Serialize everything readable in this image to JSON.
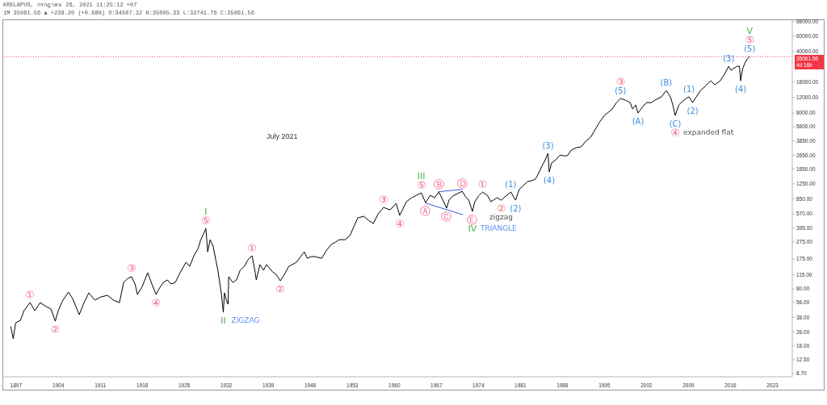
{
  "chart_data": {
    "type": "line",
    "title": "KRELAPUS, กรกฎาคม 26, 2021 11:25:12 +07",
    "subtitle": "1M 35061.56 ▲ +238.20 (+0.68%) O:34507.32 H:35095.33 L:33741.76 C:35061.56",
    "log": "y",
    "xlim": [
      1894.7,
      2026.3
    ],
    "xticks": [
      1897,
      1904,
      1911,
      1918,
      1925,
      1932,
      1939,
      1946,
      1953,
      1960,
      1967,
      1974,
      1981,
      1988,
      1995,
      2002,
      2009,
      2016,
      2023
    ],
    "ylim": [
      8,
      93000
    ],
    "yticks": [
      {
        "value": 8.7,
        "label": "8.70"
      },
      {
        "value": 12.5,
        "label": "12.50"
      },
      {
        "value": 18,
        "label": "18.00"
      },
      {
        "value": 26,
        "label": "26.00"
      },
      {
        "value": 38,
        "label": "38.00"
      },
      {
        "value": 56,
        "label": "56.00"
      },
      {
        "value": 80,
        "label": "80.00"
      },
      {
        "value": 115,
        "label": "115.00"
      },
      {
        "value": 175,
        "label": "175.00"
      },
      {
        "value": 275,
        "label": "275.00"
      },
      {
        "value": 395,
        "label": "395.00"
      },
      {
        "value": 570,
        "label": "570.00"
      },
      {
        "value": 850,
        "label": "850.00"
      },
      {
        "value": 1250,
        "label": "1250.00"
      },
      {
        "value": 1850,
        "label": "1850.00"
      },
      {
        "value": 2650,
        "label": "2650.00"
      },
      {
        "value": 3850,
        "label": "3850.00"
      },
      {
        "value": 5600,
        "label": "5600.00"
      },
      {
        "value": 8000,
        "label": "8000.00"
      },
      {
        "value": 12000,
        "label": "12000.00"
      },
      {
        "value": 18000,
        "label": "18000.00"
      },
      {
        "value": 40000,
        "label": "40000.00"
      },
      {
        "value": 60000,
        "label": "60000.00"
      },
      {
        "value": 88000,
        "label": "88000.00"
      }
    ],
    "series": [
      {
        "color": "#000000",
        "x": [
          1896.1,
          1896.5,
          1896.9,
          1897.7,
          1898.3,
          1899.3,
          1900.1,
          1901.0,
          1902.0,
          1902.8,
          1903.5,
          1904.0,
          1904.7,
          1905.7,
          1906.4,
          1907.5,
          1908.3,
          1909.1,
          1910.1,
          1911.1,
          1912.2,
          1913.2,
          1914.2,
          1914.9,
          1915.6,
          1916.2,
          1916.8,
          1917.2,
          1918.0,
          1918.9,
          1919.6,
          1920.3,
          1920.8,
          1921.5,
          1922.2,
          1922.8,
          1923.5,
          1924.3,
          1925.3,
          1925.9,
          1926.6,
          1927.3,
          1927.7,
          1928.2,
          1928.6,
          1928.9,
          1929.3,
          1929.8,
          1930.2,
          1930.6,
          1930.9,
          1931.2,
          1931.5,
          1931.7,
          1932.0,
          1932.3,
          1932.4,
          1933.1,
          1933.7,
          1934.3,
          1935.0,
          1935.6,
          1936.3,
          1936.7,
          1937.0,
          1937.6,
          1938.2,
          1938.7,
          1939.7,
          1940.3,
          1941.0,
          1941.7,
          1942.4,
          1943.0,
          1943.7,
          1944.4,
          1945.0,
          1945.5,
          1946.1,
          1946.8,
          1947.9,
          1948.7,
          1949.5,
          1950.2,
          1950.8,
          1951.8,
          1952.6,
          1953.3,
          1953.9,
          1954.9,
          1955.7,
          1956.5,
          1957.3,
          1958.2,
          1959.3,
          1960.3,
          1960.9,
          1962.0,
          1962.9,
          1963.7,
          1964.5,
          1965.2,
          1966.0,
          1966.7,
          1967.4,
          1968.1,
          1968.7,
          1969.1,
          1969.7,
          1970.5,
          1971.3,
          1971.8,
          1972.4,
          1973.0,
          1973.4,
          1974.0,
          1974.7,
          1975.5,
          1976.1,
          1977.1,
          1977.8,
          1978.4,
          1979.4,
          1980.2,
          1980.8,
          1981.5,
          1982.2,
          1982.9,
          1983.5,
          1984.1,
          1984.5,
          1985.0,
          1985.6,
          1985.8,
          1986.2,
          1986.9,
          1987.6,
          1988.3,
          1988.8,
          1989.5,
          1990.3,
          1991.1,
          1991.9,
          1992.7,
          1993.5,
          1994.3,
          1995.0,
          1995.5,
          1996.3,
          1997.0,
          1997.7,
          1998.5,
          1999.3,
          1999.7,
          2000.2,
          2000.6,
          2001.3,
          2002.0,
          2002.8,
          2003.7,
          2004.5,
          2005.3,
          2006.0,
          2006.4,
          2006.8,
          2007.4,
          2008.1,
          2008.6,
          2009.1,
          2009.7,
          2010.3,
          2011.0,
          2011.8,
          2012.7,
          2013.4,
          2014.3,
          2015.0,
          2015.7,
          2016.1,
          2016.5,
          2017.1,
          2017.5,
          2017.7,
          2018.0,
          2018.4,
          2018.8,
          2019.2
        ],
        "values": [
          29.6,
          21.6,
          32.9,
          35.1,
          45.2,
          55.8,
          45.2,
          55.8,
          50.2,
          47.2,
          34.3,
          45.2,
          58.2,
          73.5,
          62.0,
          40.6,
          55.8,
          72.0,
          59.5,
          64.7,
          67.5,
          59.5,
          55.8,
          94.6,
          105,
          110,
          90.8,
          69.0,
          85.2,
          122,
          90.8,
          69.0,
          80.0,
          94.6,
          101,
          90.8,
          94.6,
          122,
          161,
          144,
          190,
          230,
          284,
          336,
          390,
          211,
          290,
          245,
          178,
          130,
          94.6,
          69.0,
          43.3,
          72.0,
          59.5,
          53.5,
          110,
          94.6,
          101,
          130,
          144,
          171,
          190,
          136,
          101,
          151,
          130,
          151,
          125,
          117,
          98.8,
          117,
          144,
          151,
          161,
          186,
          211,
          178,
          186,
          186,
          178,
          220,
          256,
          272,
          290,
          290,
          322,
          415,
          513,
          535,
          481,
          443,
          570,
          675,
          633,
          750,
          547,
          783,
          870,
          927,
          988,
          766,
          927,
          870,
          1010,
          816,
          661,
          816,
          907,
          967,
          1030,
          907,
          816,
          607,
          783,
          907,
          1010,
          927,
          783,
          870,
          816,
          888,
          1010,
          816,
          1080,
          1200,
          1330,
          1360,
          1420,
          1680,
          1940,
          2250,
          2780,
          1710,
          2160,
          2350,
          2660,
          2610,
          2610,
          3030,
          3230,
          3290,
          3820,
          4240,
          5240,
          6470,
          7510,
          7990,
          8880,
          10500,
          11700,
          11200,
          10500,
          8880,
          9880,
          7990,
          9280,
          10500,
          10500,
          11500,
          12200,
          14400,
          12200,
          9880,
          7510,
          9880,
          11000,
          11700,
          12200,
          10500,
          12200,
          14400,
          16100,
          18600,
          16800,
          18600,
          22100,
          27200,
          24500,
          25600,
          27200,
          27200,
          18600,
          25000,
          29600,
          32900,
          35061.56
        ]
      },
      {
        "type": "line",
        "color": "#3a5be0",
        "x": [
          1967.4,
          1971.3
        ],
        "values": [
          1020,
          1080
        ]
      },
      {
        "type": "line",
        "color": "#3a5be0",
        "x": [
          1965.2,
          1971.4
        ],
        "values": [
          755,
          559
        ]
      }
    ],
    "ref_lines": [
      {
        "axis": "y",
        "value": 35061.56,
        "label": "35061.56 4d 16h",
        "color": "#f23645",
        "line_style": "dotted"
      }
    ],
    "annotations": [
      "July 2021",
      {
        "text": "①",
        "x": 1899.3,
        "y": 55.8
      },
      {
        "text": "②",
        "x": 1903.5,
        "y": 34.3
      },
      {
        "text": "③",
        "x": 1916.2,
        "y": 110
      },
      {
        "text": "④",
        "x": 1920.3,
        "y": 69.0
      },
      {
        "text": "⑤",
        "x": 1928.6,
        "y": 390
      },
      {
        "text": "I",
        "x": 1928.6,
        "y": 390
      },
      {
        "text": "II",
        "x": 1931.5,
        "y": 43.3
      },
      {
        "text": "ZIGZAG",
        "x": 1931.5,
        "y": 43.3
      },
      {
        "text": "①",
        "x": 1936.3,
        "y": 190
      },
      {
        "text": "②",
        "x": 1941.0,
        "y": 98.8
      },
      {
        "text": "③",
        "x": 1958.2,
        "y": 675
      },
      {
        "text": "④",
        "x": 1960.9,
        "y": 547
      },
      {
        "text": "⑤",
        "x": 1964.5,
        "y": 988
      },
      {
        "text": "III",
        "x": 1964.5,
        "y": 988
      },
      {
        "text": "Ⓐ",
        "x": 1965.2,
        "y": 766
      },
      {
        "text": "Ⓑ",
        "x": 1967.4,
        "y": 1010
      },
      {
        "text": "Ⓒ",
        "x": 1968.7,
        "y": 661
      },
      {
        "text": "Ⓓ",
        "x": 1971.3,
        "y": 1030
      },
      {
        "text": "Ⓔ",
        "x": 1973.0,
        "y": 607
      },
      {
        "text": "IV",
        "x": 1973.0,
        "y": 607
      },
      {
        "text": "TRIANGLE",
        "x": 1973.0,
        "y": 607
      },
      {
        "text": "①",
        "x": 1974.7,
        "y": 1010
      },
      {
        "text": "②",
        "x": 1977.8,
        "y": 816
      },
      {
        "text": "zigzag",
        "x": 1977.8,
        "y": 816
      },
      {
        "text": "(1)",
        "x": 1979.4,
        "y": 1010
      },
      {
        "text": "(2)",
        "x": 1980.2,
        "y": 816
      },
      {
        "text": "(3)",
        "x": 1985.6,
        "y": 2780
      },
      {
        "text": "(4)",
        "x": 1985.8,
        "y": 1710
      },
      {
        "text": "(5)",
        "x": 1997.7,
        "y": 11700
      },
      {
        "text": "③",
        "x": 1997.7,
        "y": 11700
      },
      {
        "text": "(A)",
        "x": 2000.6,
        "y": 7990
      },
      {
        "text": "(B)",
        "x": 2005.3,
        "y": 14400
      },
      {
        "text": "(C)",
        "x": 2006.8,
        "y": 7510
      },
      {
        "text": "④",
        "x": 2006.8,
        "y": 7510
      },
      {
        "text": "expanded flat",
        "x": 2006.8,
        "y": 7510
      },
      {
        "text": "(1)",
        "x": 2009.1,
        "y": 12200
      },
      {
        "text": "(2)",
        "x": 2009.7,
        "y": 10500
      },
      {
        "text": "(3)",
        "x": 2015.7,
        "y": 27200
      },
      {
        "text": "(4)",
        "x": 2017.7,
        "y": 18600
      },
      {
        "text": "(5)",
        "x": 2019.2,
        "y": 35061.56
      },
      {
        "text": "⑤",
        "x": 2019.2,
        "y": 35061.56
      },
      {
        "text": "V",
        "x": 2019.2,
        "y": 35061.56
      }
    ]
  }
}
